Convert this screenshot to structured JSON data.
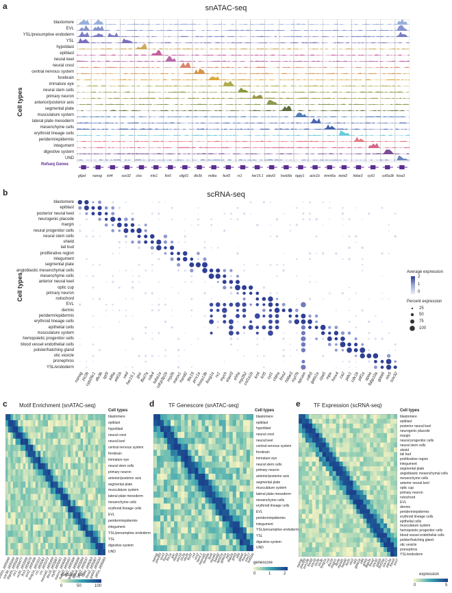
{
  "panel_a": {
    "letter": "a",
    "title": "snATAC-seq",
    "y_axis_label": "Cell types",
    "rows": [
      "blastomere",
      "EVL",
      "YSL/presumptive endoderm",
      "YSL",
      "hypoblast",
      "epiblast",
      "neural keel",
      "neural crest",
      "central nervous system",
      "forebrain",
      "immature eye",
      "neural stem cells",
      "primary neuron",
      "anterior/posterior axis",
      "segmental plate",
      "musculature system",
      "lateral plate mesoderm",
      "mesenchyme cells",
      "erythroid lineage cells",
      "periderm/epidermis",
      "integument",
      "digestive system",
      "UND"
    ],
    "refseq_label": "Refseq Genes",
    "genes": [
      "g6pd",
      "nanog",
      "krt4",
      "sox32",
      "ctsc",
      "mls1",
      "lhx5",
      "olig01",
      "dlx3b",
      "mdka",
      "fezf2",
      "rx1",
      "her15.1",
      "elavl3",
      "hoxb9a",
      "rippy1",
      "actc1b",
      "tnnnt6a",
      "twist2",
      "hbbe3",
      "cyt1l",
      "col5a3b",
      "foxa3"
    ],
    "colors": [
      "#8ea8d6",
      "#7b89c9",
      "#6c6fbd",
      "#6b62b3",
      "#c6a24b",
      "#bf4e93",
      "#b0589c",
      "#d47a5b",
      "#d08a3a",
      "#d6a02a",
      "#a5a438",
      "#7f8d2a",
      "#8f8a2e",
      "#7e8f3e",
      "#4d5e2a",
      "#3d6fb2",
      "#3c55a8",
      "#2f4fa3",
      "#59c6d8",
      "#e36a73",
      "#d2557a",
      "#6d3a8a",
      "#5b79b8"
    ]
  },
  "panel_b": {
    "letter": "b",
    "title": "scRNA-seq",
    "y_axis_label": "Cell types",
    "rows": [
      "blastomere",
      "epiblast",
      "posterior neural keel",
      "neurogenic placode",
      "margin",
      "neural progenitor cells",
      "neural stem cells",
      "shield",
      "tail bud",
      "proliferative region",
      "integument",
      "segmental plate",
      "angioblastic mesenchymal cells",
      "mesenchyme cells",
      "anterior neural keel",
      "optic cup",
      "primary neuron",
      "notochord",
      "EVL",
      "dermis",
      "periderm/epidermis",
      "erythroid lineage cells",
      "epithelial cells",
      "musculature system",
      "hemopoietic progenitor cells",
      "blood vessel endothelial cells",
      "polster/hatching gland",
      "otic vesicle",
      "pronephros",
      "YSL/endoderm"
    ],
    "genes": [
      "nanog",
      "zic2b",
      "cyp26c1",
      "dlx3b",
      "sp5l",
      "kif6a",
      "ebf1b",
      "ved",
      "her15.1",
      "gsc",
      "fbxl7a",
      "cdx4",
      "tuba1a",
      "cdcp3p1b",
      "nrp2b",
      "meox1",
      "hand2",
      "tbx16",
      "prrx1a",
      "hoxa13b",
      "foxg1a",
      "rx1",
      "mych",
      "elavl3",
      "shha",
      "nrp2b2",
      "col1a1b",
      "krt4",
      "krt5",
      "cyt1",
      "cldna",
      "lmo2",
      "hbbe3",
      "myl7b",
      "epcam",
      "cdh5",
      "gata1a",
      "cpa5",
      "mpx",
      "hmx4",
      "ca2",
      "pdx1",
      "cdx1b",
      "ptf1a",
      "apoa",
      "fabp10a",
      "gata6",
      "otx5",
      "sox32"
    ],
    "legend": {
      "avg_title": "Average expression",
      "avg_ticks": [
        "2",
        "1",
        "0"
      ],
      "pct_title": "Percent expression",
      "pct_ticks": [
        "25",
        "50",
        "75",
        "100"
      ]
    }
  },
  "panel_c": {
    "letter": "c",
    "title": "Motif Enrichment (snATAC-seq)",
    "col_title": "Cell types",
    "rows": [
      "blastomere",
      "epiblast",
      "hypoblast",
      "neural crest",
      "neural keel",
      "central nervous system",
      "forebrain",
      "immature eye",
      "neural stem cells",
      "primary neuron",
      "anterior/posterior axis",
      "segmental plate",
      "musculature system",
      "lateral plate mesoderm",
      "mesenchyme cells",
      "erythroid lineage cells",
      "EVL",
      "periderm/epidermis",
      "integument",
      "YSL/presumptive endoderm",
      "YSL",
      "digestive system",
      "UND"
    ],
    "x_labels": [
      "pou5f1b_M05948",
      "sox3a_M05944",
      "tfap2a_M05826",
      "zic1_M04477",
      "nr2f1_M03998",
      "lhx3_M04070",
      "sox2_M05406",
      "foxg1a_M01812",
      "rx1_M05061",
      "crx_M03372",
      "neurod1_M05459",
      "tbx16_M03887",
      "myf5_M05661",
      "meox1_M04085",
      "hand2_M05457",
      "tal1_M05908",
      "gata1a_M06898",
      "tead4_M03894",
      "grhl2_M09037",
      "klf4_M06063",
      "foxa2_M05867",
      "gata5_M05833",
      "ptf1a_M06883"
    ],
    "legend_title": "-log10(p_adj)",
    "legend_ticks": [
      "0",
      "50",
      "100"
    ]
  },
  "panel_d": {
    "letter": "d",
    "title": "TF Genescore (snATAC-seq)",
    "col_title": "Cell types",
    "rows": [
      "blastomere",
      "epiblast",
      "hypoblast",
      "neural crest",
      "neural keel",
      "central nervous system",
      "forebrain",
      "immature eye",
      "neural stem cells",
      "primary neuron",
      "anterior/posterior axis",
      "segmental plate",
      "musculature system",
      "lateral plate mesoderm",
      "mesenchyme cells",
      "erythroid lineage cells",
      "EVL",
      "periderm/epidermis",
      "integument",
      "YSL/presumptive endoderm",
      "YSL",
      "digestive system",
      "UND"
    ],
    "x_labels": [
      "nanog",
      "pou5f3",
      "sox3",
      "foxa3",
      "lhx1a",
      "gsc",
      "foxd3",
      "sox10",
      "zic2a",
      "otx2b",
      "fezf2",
      "rx3",
      "vsx2",
      "her4.1",
      "neurod1",
      "hoxb9a",
      "tbx6",
      "myod1",
      "hand2",
      "twist1a",
      "gata1a",
      "tal1",
      "tfap2a",
      "grhl3",
      "klf4",
      "gata6",
      "foxa2",
      "sox17",
      "hnf1ba"
    ],
    "legend_title": "genescore",
    "legend_ticks": [
      "0",
      "1",
      "2"
    ]
  },
  "panel_e": {
    "letter": "e",
    "title": "TF Expression (scRNA-seq)",
    "col_title": "Cell types",
    "rows": [
      "blastomere",
      "epiblast",
      "posterior neural keel",
      "neurogenic placode",
      "margin",
      "neural progenitor cells",
      "neural stem cells",
      "shield",
      "tail bud",
      "proliferative region",
      "integument",
      "segmental plate",
      "angioblastic mesenchymal cells",
      "mesenchyme cells",
      "anterior neural keel",
      "optic cup",
      "primary neuron",
      "notochord",
      "EVL",
      "dermis",
      "periderm/epidermis",
      "erythroid lineage cells",
      "epithelial cells",
      "musculature system",
      "hemopoietic progenitor cells",
      "blood vessel endothelial cells",
      "polster/hatching gland",
      "otic vesicle",
      "pronephros",
      "YSL/endoderm"
    ],
    "x_labels": [
      "nanog",
      "pou5f3",
      "sox19b",
      "foxd3",
      "sox10",
      "zic2b",
      "six3b",
      "foxg1a",
      "rx3",
      "tbx16",
      "msgn1",
      "tbxta",
      "myod1",
      "hand2",
      "foxf1",
      "etv2",
      "tal1",
      "gata1a",
      "klf4",
      "grhl3",
      "tfap2a",
      "foxa2",
      "sox32",
      "gata5",
      "hnf1ba",
      "sox17",
      "pax2a",
      "foxa3",
      "sox7"
    ],
    "legend_title": "expression",
    "legend_ticks": [
      "0",
      "5"
    ]
  }
}
